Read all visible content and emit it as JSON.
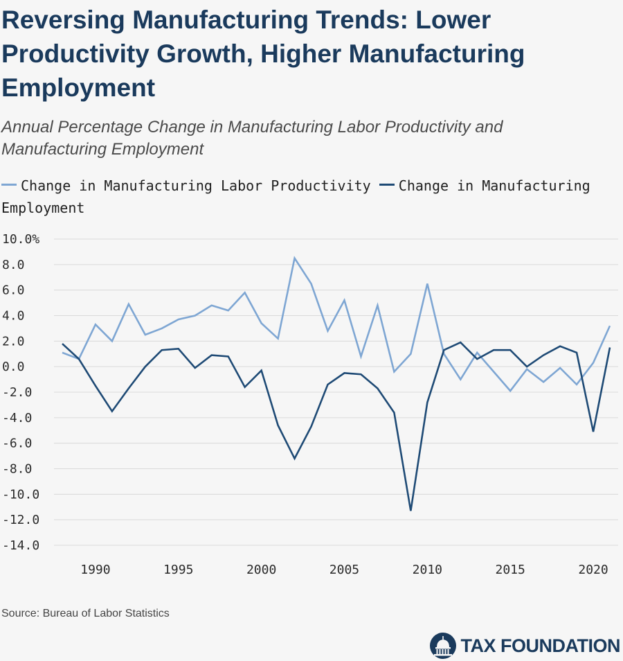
{
  "header": {
    "title": "Reversing Manufacturing Trends: Lower Productivity Growth, Higher Manufacturing Employment",
    "subtitle": "Annual Percentage Change in Manufacturing Labor Productivity and Manufacturing Employment"
  },
  "legend": {
    "items": [
      {
        "label": "Change in Manufacturing Labor Productivity",
        "color": "#7ea6d3"
      },
      {
        "label": "Change in Manufacturing Employment",
        "color": "#1e4a75"
      }
    ]
  },
  "footer": {
    "source": "Source: Bureau of Labor Statistics",
    "brand": "TAX FOUNDATION",
    "brand_icon": "capitol-dome-icon"
  },
  "chart_data": {
    "type": "line",
    "title": "Reversing Manufacturing Trends: Lower Productivity Growth, Higher Manufacturing Employment",
    "subtitle": "Annual Percentage Change in Manufacturing Labor Productivity and Manufacturing Employment",
    "x": [
      1988,
      1989,
      1990,
      1991,
      1992,
      1993,
      1994,
      1995,
      1996,
      1997,
      1998,
      1999,
      2000,
      2001,
      2002,
      2003,
      2004,
      2005,
      2006,
      2007,
      2008,
      2009,
      2010,
      2011,
      2012,
      2013,
      2014,
      2015,
      2016,
      2017,
      2018,
      2019,
      2020,
      2021
    ],
    "xticks": [
      1990,
      1995,
      2000,
      2005,
      2010,
      2015,
      2020
    ],
    "xlim": [
      1987.5,
      2021.5
    ],
    "ylim": [
      -14,
      10
    ],
    "yticks": [
      10,
      8,
      6,
      4,
      2,
      0,
      -2,
      -4,
      -6,
      -8,
      -10,
      -12,
      -14
    ],
    "ytick_labels": [
      "10.0%",
      "8.0",
      "6.0",
      "4.0",
      "2.0",
      "0.0",
      "-2.0",
      "-4.0",
      "-6.0",
      "-8.0",
      "-10.0",
      "-12.0",
      "-14.0"
    ],
    "grid": true,
    "legend_position": "top-left",
    "series": [
      {
        "name": "Change in Manufacturing Labor Productivity",
        "color": "#7ea6d3",
        "values": [
          1.1,
          0.6,
          3.3,
          2.0,
          4.9,
          2.5,
          3.0,
          3.7,
          4.0,
          4.8,
          4.4,
          5.8,
          3.4,
          2.2,
          8.5,
          6.5,
          2.8,
          5.2,
          0.8,
          4.8,
          -0.4,
          1.0,
          6.5,
          1.0,
          -1.0,
          1.1,
          -0.4,
          -1.9,
          -0.2,
          -1.2,
          -0.1,
          -1.4,
          0.3,
          3.2
        ]
      },
      {
        "name": "Change in Manufacturing Employment",
        "color": "#1e4a75",
        "values": [
          1.8,
          0.6,
          -1.5,
          -3.5,
          -1.7,
          0.0,
          1.3,
          1.4,
          -0.1,
          0.9,
          0.8,
          -1.6,
          -0.3,
          -4.6,
          -7.2,
          -4.7,
          -1.4,
          -0.5,
          -0.6,
          -1.7,
          -3.6,
          -11.3,
          -2.8,
          1.3,
          1.9,
          0.6,
          1.3,
          1.3,
          0.0,
          0.9,
          1.6,
          1.1,
          -5.1,
          1.5
        ]
      }
    ]
  }
}
